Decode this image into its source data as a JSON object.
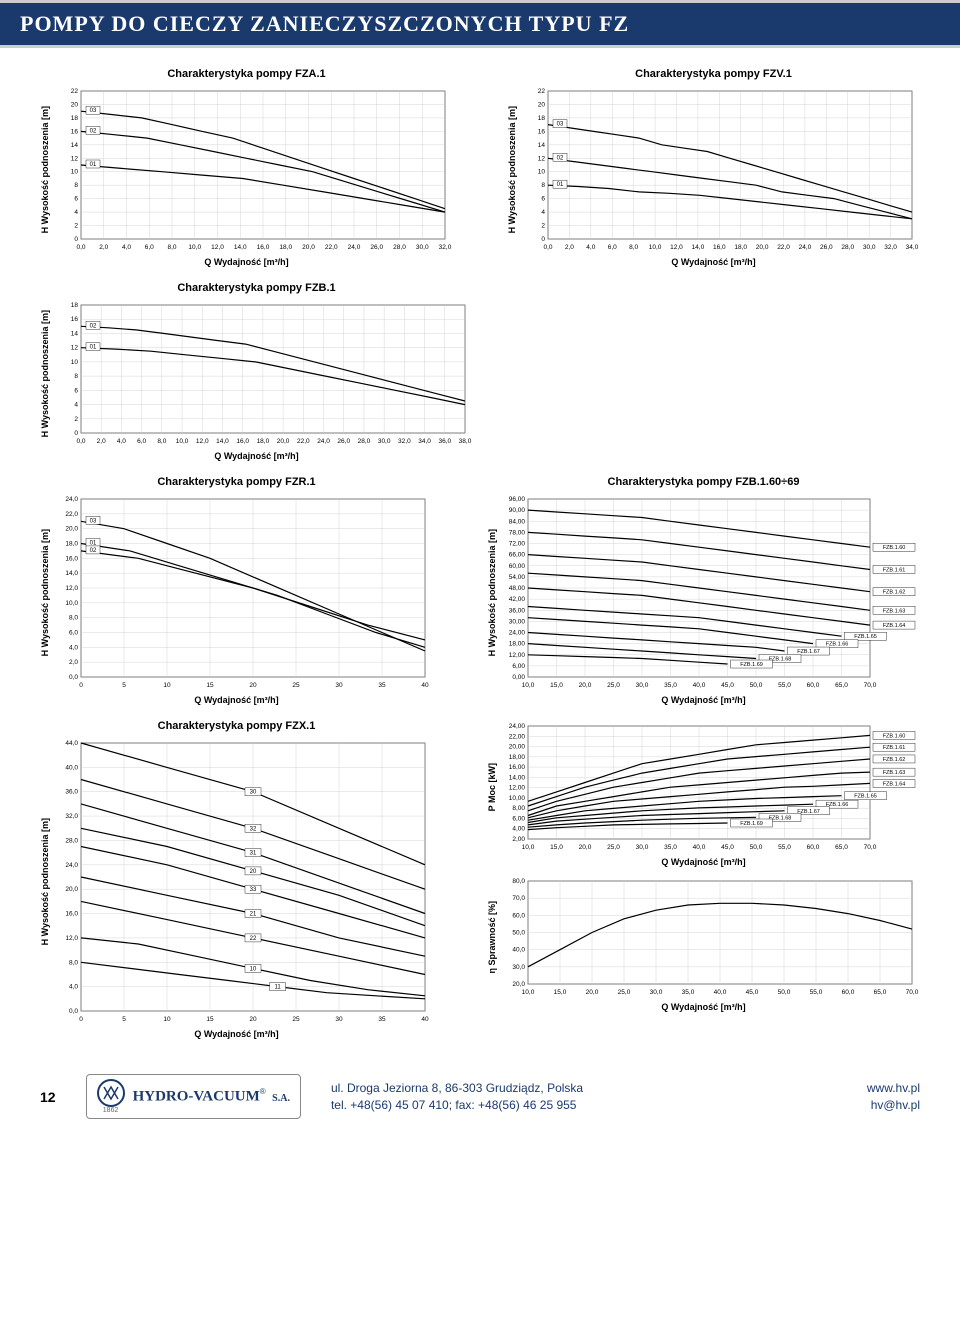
{
  "header": {
    "title": "POMPY DO CIECZY ZANIECZYSZCZONYCH TYPU FZ"
  },
  "labels": {
    "ylabel_h": "H Wysokość podnoszenia [m]",
    "ylabel_p": "P Moc [kW]",
    "ylabel_eta": "η Sprawność [%]",
    "xlabel": "Q Wydajność [m³/h]"
  },
  "charts": {
    "fza1": {
      "title": "Charakterystyka pompy FZA.1",
      "type": "line",
      "ylim": [
        0,
        22
      ],
      "xlim": [
        0,
        32.0
      ],
      "yticks": [
        0,
        2,
        4,
        6,
        8,
        10,
        12,
        14,
        16,
        18,
        20,
        22
      ],
      "xticks": [
        "0,0",
        "2,0",
        "4,0",
        "6,0",
        "8,0",
        "10,0",
        "12,0",
        "14,0",
        "16,0",
        "18,0",
        "20,0",
        "22,0",
        "24,0",
        "26,0",
        "28,0",
        "30,0",
        "32,0"
      ],
      "series_labels": [
        "03",
        "02",
        "01"
      ],
      "grid_color": "#cccccc",
      "line_color": "#000000",
      "curves": [
        {
          "label": "03",
          "y": [
            19,
            18.5,
            18,
            17,
            16,
            15,
            13.5,
            12,
            10.5,
            9,
            7.5,
            6,
            4.5
          ]
        },
        {
          "label": "02",
          "y": [
            16,
            15.5,
            15,
            14,
            13,
            12,
            11,
            10,
            8.5,
            7,
            5.5,
            4
          ]
        },
        {
          "label": "01",
          "y": [
            11,
            10.5,
            10,
            9.5,
            9,
            8,
            7,
            6,
            5,
            4
          ]
        }
      ]
    },
    "fzv1": {
      "title": "Charakterystyka pompy FZV.1",
      "type": "line",
      "ylim": [
        0,
        22
      ],
      "xlim": [
        0,
        34.0
      ],
      "yticks": [
        0,
        2,
        4,
        6,
        8,
        10,
        12,
        14,
        16,
        18,
        20,
        22
      ],
      "xticks": [
        "0,0",
        "2,0",
        "4,0",
        "6,0",
        "8,0",
        "10,0",
        "12,0",
        "14,0",
        "16,0",
        "18,0",
        "20,0",
        "22,0",
        "24,0",
        "26,0",
        "28,0",
        "30,0",
        "32,0",
        "34,0"
      ],
      "series_labels": [
        "03",
        "02",
        "01"
      ],
      "grid_color": "#cccccc",
      "line_color": "#000000",
      "curves": [
        {
          "label": "03",
          "y": [
            17,
            16.5,
            16,
            15.5,
            15,
            14,
            13.5,
            13,
            12,
            11,
            10,
            9,
            8,
            7,
            6,
            5,
            4
          ]
        },
        {
          "label": "02",
          "y": [
            12,
            11.5,
            11,
            10.5,
            10,
            9.5,
            9,
            8.5,
            8,
            7,
            6.5,
            6,
            5,
            4,
            3
          ]
        },
        {
          "label": "01",
          "y": [
            8,
            7.8,
            7.5,
            7,
            6.8,
            6.5,
            6,
            5.5,
            5,
            4.5,
            4,
            3.5,
            3
          ]
        }
      ]
    },
    "fzb1": {
      "title": "Charakterystyka pompy FZB.1",
      "type": "line",
      "ylim": [
        0,
        18
      ],
      "xlim": [
        0,
        38.0
      ],
      "yticks": [
        0,
        2,
        4,
        6,
        8,
        10,
        12,
        14,
        16,
        18
      ],
      "xticks": [
        "0,0",
        "2,0",
        "4,0",
        "6,0",
        "8,0",
        "10,0",
        "12,0",
        "14,0",
        "16,0",
        "18,0",
        "20,0",
        "22,0",
        "24,0",
        "26,0",
        "28,0",
        "30,0",
        "32,0",
        "34,0",
        "36,0",
        "38,0"
      ],
      "series_labels": [
        "02",
        "01"
      ],
      "grid_color": "#cccccc",
      "line_color": "#000000",
      "curves": [
        {
          "label": "02",
          "y": [
            15,
            14.8,
            14.5,
            14,
            13.5,
            13,
            12.5,
            11.5,
            10.5,
            9.5,
            8.5,
            7.5,
            6.5,
            5.5,
            4.5
          ]
        },
        {
          "label": "01",
          "y": [
            12,
            11.8,
            11.5,
            11,
            10.5,
            10,
            9,
            8,
            7,
            6,
            5,
            4
          ]
        }
      ]
    },
    "fzr1": {
      "title": "Charakterystyka pompy FZR.1",
      "type": "line",
      "ylim": [
        0,
        24.0
      ],
      "xlim": [
        0,
        40
      ],
      "yticks": [
        "0,0",
        "2,0",
        "4,0",
        "6,0",
        "8,0",
        "10,0",
        "12,0",
        "14,0",
        "16,0",
        "18,0",
        "20,0",
        "22,0",
        "24,0"
      ],
      "xticks": [
        0,
        5,
        10,
        15,
        20,
        25,
        30,
        35,
        40
      ],
      "series_labels": [
        "03",
        "01",
        "02"
      ],
      "grid_color": "#cccccc",
      "line_color": "#000000",
      "curves": [
        {
          "label": "03",
          "y": [
            21,
            20,
            18,
            16,
            13.5,
            11,
            8.5,
            6,
            3.5
          ]
        },
        {
          "label": "01",
          "y": [
            18,
            17,
            15,
            13,
            11,
            8.5,
            6,
            4
          ]
        },
        {
          "label": "02",
          "y": [
            17,
            16,
            14,
            12,
            9.5,
            7,
            5
          ]
        }
      ]
    },
    "fzx1": {
      "title": "Charakterystyka pompy FZX.1",
      "type": "line",
      "ylim": [
        0,
        44.0
      ],
      "xlim": [
        0,
        40
      ],
      "yticks": [
        "0,0",
        "4,0",
        "8,0",
        "12,0",
        "16,0",
        "20,0",
        "24,0",
        "28,0",
        "32,0",
        "36,0",
        "40,0",
        "44,0"
      ],
      "xticks": [
        0,
        5,
        10,
        15,
        20,
        25,
        30,
        35,
        40
      ],
      "series_labels": [
        "30",
        "32",
        "31",
        "20",
        "33",
        "21",
        "22",
        "10",
        "11"
      ],
      "grid_color": "#cccccc",
      "line_color": "#000000",
      "curves": [
        {
          "label": "30",
          "y": [
            44,
            40,
            36,
            30,
            24
          ]
        },
        {
          "label": "32",
          "y": [
            38,
            34,
            30,
            25,
            20
          ]
        },
        {
          "label": "31",
          "y": [
            34,
            30,
            26,
            21,
            16
          ]
        },
        {
          "label": "20",
          "y": [
            30,
            27,
            23,
            19,
            14
          ]
        },
        {
          "label": "33",
          "y": [
            27,
            24,
            20,
            16,
            12
          ]
        },
        {
          "label": "21",
          "y": [
            22,
            19,
            16,
            12,
            9
          ]
        },
        {
          "label": "22",
          "y": [
            18,
            15,
            12,
            9,
            6
          ]
        },
        {
          "label": "10",
          "y": [
            12,
            11,
            9,
            7,
            5,
            3.5,
            2.5
          ]
        },
        {
          "label": "11",
          "y": [
            8,
            7,
            6,
            5,
            4,
            3,
            2.5,
            2
          ]
        }
      ]
    },
    "fzb160_h": {
      "title": "Charakterystyka pompy FZB.1.60÷69",
      "type": "line",
      "ylim": [
        0,
        96
      ],
      "xlim": [
        10,
        70
      ],
      "yticks": [
        "0,00",
        "6,00",
        "12,00",
        "18,00",
        "24,00",
        "30,00",
        "36,00",
        "42,00",
        "48,00",
        "54,00",
        "60,00",
        "66,00",
        "72,00",
        "78,00",
        "84,00",
        "90,00",
        "96,00"
      ],
      "xticks": [
        "10,0",
        "15,0",
        "20,0",
        "25,0",
        "30,0",
        "35,0",
        "40,0",
        "45,0",
        "50,0",
        "55,0",
        "60,0",
        "65,0",
        "70,0"
      ],
      "series_labels": [
        "FZB.1.60",
        "FZB.1.61",
        "FZB.1.62",
        "FZB.1.63",
        "FZB.1.64",
        "FZB.1.65",
        "FZB.1.66",
        "FZB.1.67",
        "FZB.1.68",
        "FZB.1.69"
      ],
      "grid_color": "#cccccc",
      "line_color": "#000000",
      "curves": [
        {
          "label": "FZB.1.60",
          "y": [
            90,
            89,
            88,
            87,
            86,
            84,
            82,
            80,
            78,
            76,
            74,
            72,
            70
          ]
        },
        {
          "label": "FZB.1.61",
          "y": [
            78,
            77,
            76,
            75,
            74,
            72,
            70,
            68,
            66,
            64,
            62,
            60,
            58
          ]
        },
        {
          "label": "FZB.1.62",
          "y": [
            66,
            65,
            64,
            63,
            62,
            60,
            58,
            56,
            54,
            52,
            50,
            48,
            46
          ]
        },
        {
          "label": "FZB.1.63",
          "y": [
            56,
            55,
            54,
            53,
            52,
            50,
            48,
            46,
            44,
            42,
            40,
            38,
            36
          ]
        },
        {
          "label": "FZB.1.64",
          "y": [
            48,
            47,
            46,
            45,
            44,
            42,
            40,
            38,
            36,
            34,
            32,
            30,
            28
          ]
        },
        {
          "label": "FZB.1.65",
          "y": [
            38,
            37,
            36,
            35,
            34,
            33,
            32,
            30,
            28,
            26,
            24,
            22
          ]
        },
        {
          "label": "FZB.1.66",
          "y": [
            32,
            31,
            30,
            29,
            28,
            27,
            26,
            24,
            22,
            20,
            18
          ]
        },
        {
          "label": "FZB.1.67",
          "y": [
            24,
            23,
            22,
            21,
            20,
            19,
            18,
            17,
            16,
            14
          ]
        },
        {
          "label": "FZB.1.68",
          "y": [
            18,
            17,
            16,
            15,
            14,
            13,
            12,
            11,
            10
          ]
        },
        {
          "label": "FZB.1.69",
          "y": [
            12,
            11.5,
            11,
            10.5,
            10,
            9,
            8,
            7
          ]
        }
      ]
    },
    "fzb160_p": {
      "type": "line",
      "ylim": [
        0,
        24
      ],
      "xlim": [
        10,
        70
      ],
      "yticks": [
        "2,00",
        "4,00",
        "6,00",
        "8,00",
        "10,00",
        "12,00",
        "14,00",
        "16,00",
        "18,00",
        "20,00",
        "22,00",
        "24,00"
      ],
      "xticks": [
        "10,0",
        "15,0",
        "20,0",
        "25,0",
        "30,0",
        "35,0",
        "40,0",
        "45,0",
        "50,0",
        "55,0",
        "60,0",
        "65,0",
        "70,0"
      ],
      "series_labels": [
        "FZB.1.60",
        "FZB.1.61",
        "FZB.1.62",
        "FZB.1.63",
        "FZB.1.64",
        "FZB.1.65",
        "FZB.1.66",
        "FZB.1.67",
        "FZB.1.68",
        "FZB.1.69"
      ],
      "grid_color": "#cccccc",
      "line_color": "#000000",
      "curves": [
        {
          "label": "FZB.1.60",
          "y": [
            8,
            10,
            12,
            14,
            16,
            17,
            18,
            19,
            20,
            20.5,
            21,
            21.5,
            22
          ]
        },
        {
          "label": "FZB.1.61",
          "y": [
            7,
            9,
            11,
            12.5,
            14,
            15,
            16,
            17,
            17.5,
            18,
            18.5,
            19,
            19.5
          ]
        },
        {
          "label": "FZB.1.62",
          "y": [
            6,
            8,
            9.5,
            11,
            12,
            13,
            14,
            14.5,
            15,
            15.5,
            16,
            16.5,
            17
          ]
        },
        {
          "label": "FZB.1.63",
          "y": [
            5,
            7,
            8,
            9,
            10,
            11,
            11.5,
            12,
            12.5,
            13,
            13.5,
            14,
            14.2
          ]
        },
        {
          "label": "FZB.1.64",
          "y": [
            4.5,
            6,
            7,
            8,
            8.5,
            9,
            9.5,
            10,
            10.5,
            11,
            11.2,
            11.5,
            11.8
          ]
        },
        {
          "label": "FZB.1.65",
          "y": [
            4,
            5,
            6,
            6.5,
            7,
            7.5,
            8,
            8.3,
            8.6,
            8.8,
            9,
            9.2
          ]
        },
        {
          "label": "FZB.1.66",
          "y": [
            3.5,
            4.5,
            5,
            5.5,
            6,
            6.3,
            6.6,
            6.8,
            7,
            7.2,
            7.4
          ]
        },
        {
          "label": "FZB.1.67",
          "y": [
            3,
            3.8,
            4.2,
            4.6,
            5,
            5.2,
            5.4,
            5.6,
            5.8,
            6
          ]
        },
        {
          "label": "FZB.1.68",
          "y": [
            2.5,
            3,
            3.4,
            3.7,
            4,
            4.2,
            4.4,
            4.5,
            4.6
          ]
        },
        {
          "label": "FZB.1.69",
          "y": [
            2,
            2.4,
            2.7,
            3,
            3.1,
            3.2,
            3.3,
            3.4
          ]
        }
      ]
    },
    "fzb160_eta": {
      "type": "line",
      "ylim": [
        20,
        80
      ],
      "xlim": [
        10,
        70
      ],
      "yticks": [
        "20,0",
        "30,0",
        "40,0",
        "50,0",
        "60,0",
        "70,0",
        "80,0"
      ],
      "xticks": [
        "10,0",
        "15,0",
        "20,0",
        "25,0",
        "30,0",
        "35,0",
        "40,0",
        "45,0",
        "50,0",
        "55,0",
        "60,0",
        "65,0",
        "70,0"
      ],
      "grid_color": "#cccccc",
      "line_color": "#000000",
      "curves": [
        {
          "y": [
            30,
            40,
            50,
            58,
            63,
            66,
            67,
            67,
            66,
            64,
            61,
            57,
            52
          ]
        }
      ]
    }
  },
  "footer": {
    "page": "12",
    "logo_name": "HYDRO-VACUUM",
    "logo_sa": "S.A.",
    "logo_reg": "®",
    "logo_year": "1862",
    "address": "ul. Droga Jeziorna 8, 86-303 Grudziądz, Polska",
    "phone": "tel. +48(56) 45 07 410; fax: +48(56) 46 25 955",
    "web": "www.hv.pl",
    "email": "hv@hv.pl"
  }
}
